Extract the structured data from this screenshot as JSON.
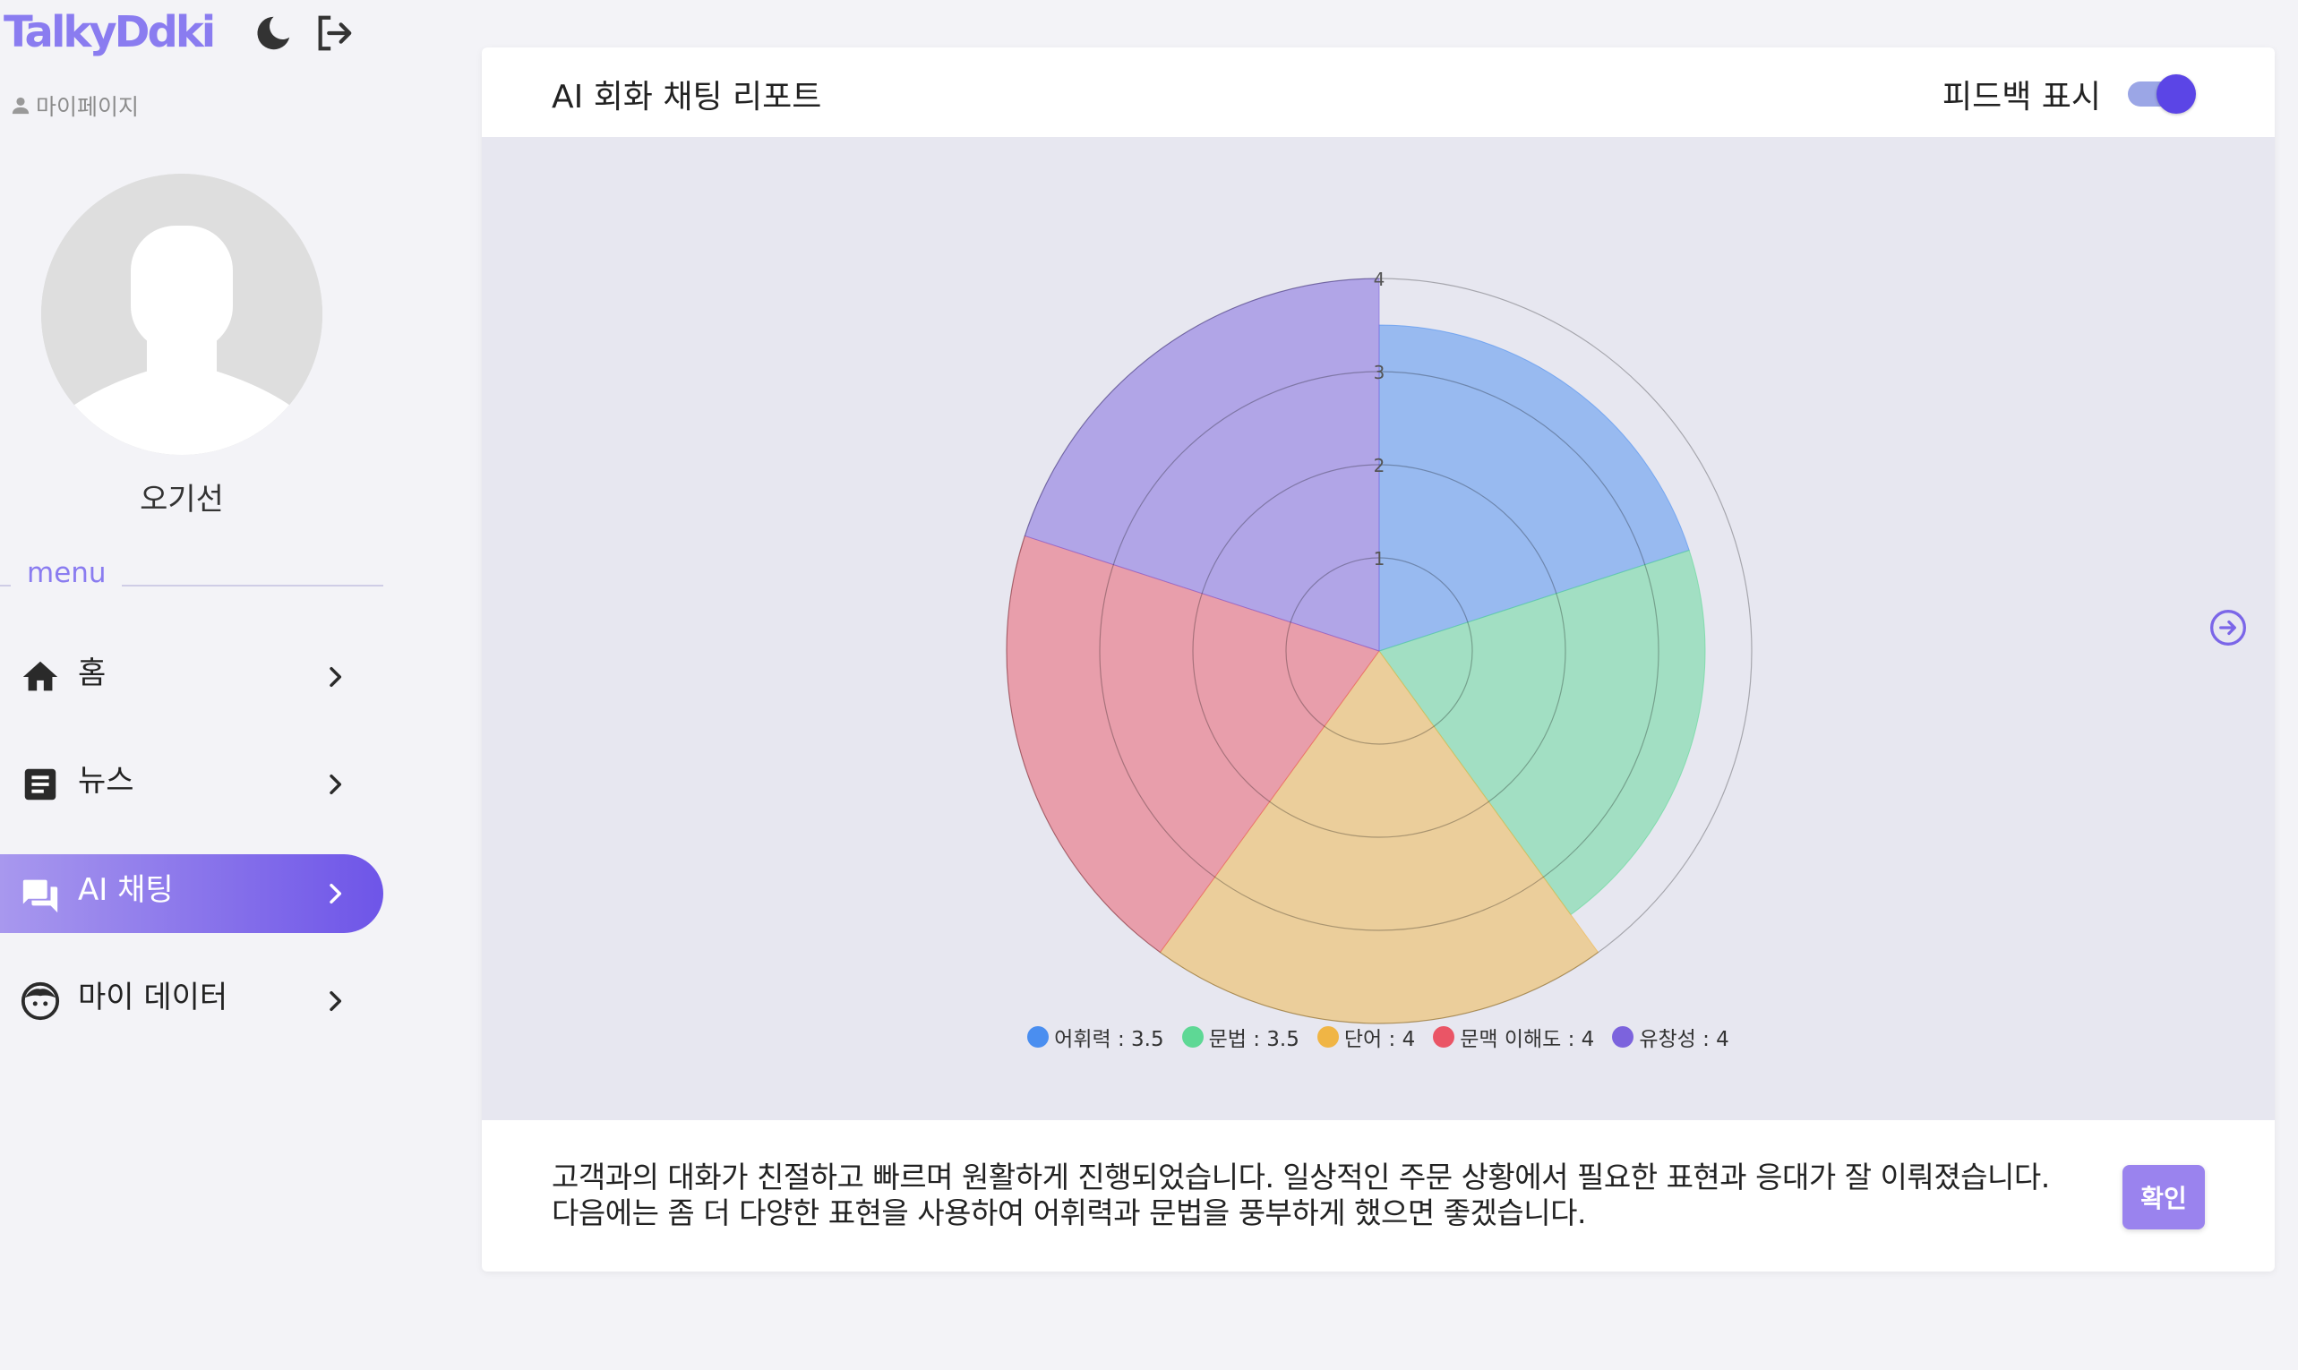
{
  "app": {
    "logo": "TalkyDdki"
  },
  "header_icons": [
    "moon-icon",
    "logout-icon"
  ],
  "sidebar": {
    "mypage_label": "마이페이지",
    "username": "오기선",
    "menu_label": "menu",
    "items": [
      {
        "label": "홈",
        "icon": "home-icon",
        "active": false
      },
      {
        "label": "뉴스",
        "icon": "article-icon",
        "active": false
      },
      {
        "label": "AI 채팅",
        "icon": "chat-icon",
        "active": true
      },
      {
        "label": "마이 데이터",
        "icon": "face-icon",
        "active": false
      }
    ]
  },
  "report": {
    "title": "AI 회화 채팅 리포트",
    "feedback_toggle_label": "피드백 표시",
    "feedback_toggle_on": true,
    "feedback_text": "고객과의 대화가 친절하고 빠르며 원활하게 진행되었습니다. 일상적인 주문 상황에서 필요한 표현과 응대가 잘 이뤄졌습니다. 다음에는 좀 더 다양한 표현을 사용하여 어휘력과 문법을 풍부하게 했으면 좋겠습니다.",
    "confirm_label": "확인"
  },
  "chart_data": {
    "type": "polarArea",
    "categories": [
      "어휘력",
      "문법",
      "단어",
      "문맥 이해도",
      "유창성"
    ],
    "values": [
      3.5,
      3.5,
      4,
      4,
      4
    ],
    "legend_labels": [
      "어휘력 : 3.5",
      "문법 : 3.5",
      "단어 : 4",
      "문맥 이해도 : 4",
      "유창성 : 4"
    ],
    "colors": [
      "#4a8ef0",
      "#5ed895",
      "#f0b545",
      "#ea5566",
      "#7c63dd"
    ],
    "r_ticks": [
      "1",
      "2",
      "3",
      "4"
    ],
    "r_range": [
      0,
      4
    ],
    "legend_position": "bottom"
  }
}
